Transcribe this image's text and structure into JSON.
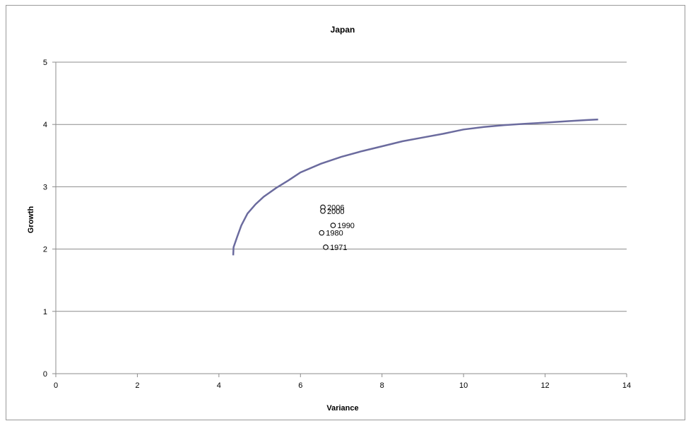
{
  "chart_data": {
    "type": "scatter",
    "title": "Japan",
    "xlabel": "Variance",
    "ylabel": "Growth",
    "xlim": [
      0,
      14
    ],
    "ylim": [
      0,
      5
    ],
    "xticks": [
      0,
      2,
      4,
      6,
      8,
      10,
      12,
      14
    ],
    "yticks": [
      0,
      1,
      2,
      3,
      4,
      5
    ],
    "grid": "horizontal",
    "legend": "none",
    "curve": {
      "color": "#6b6b9e",
      "points": [
        [
          4.35,
          1.9
        ],
        [
          4.36,
          2.03
        ],
        [
          4.45,
          2.2
        ],
        [
          4.55,
          2.38
        ],
        [
          4.7,
          2.57
        ],
        [
          4.9,
          2.72
        ],
        [
          5.1,
          2.84
        ],
        [
          5.4,
          2.98
        ],
        [
          5.7,
          3.1
        ],
        [
          6.0,
          3.23
        ],
        [
          6.5,
          3.37
        ],
        [
          7.0,
          3.48
        ],
        [
          7.5,
          3.57
        ],
        [
          8.0,
          3.65
        ],
        [
          8.5,
          3.73
        ],
        [
          9.0,
          3.79
        ],
        [
          9.5,
          3.85
        ],
        [
          10.0,
          3.92
        ],
        [
          10.5,
          3.96
        ],
        [
          11.0,
          3.99
        ],
        [
          11.5,
          4.01
        ],
        [
          12.0,
          4.03
        ],
        [
          12.5,
          4.05
        ],
        [
          13.0,
          4.07
        ],
        [
          13.3,
          4.08
        ]
      ]
    },
    "points": [
      {
        "label": "2006",
        "x": 6.55,
        "y": 2.67
      },
      {
        "label": "2000",
        "x": 6.55,
        "y": 2.61
      },
      {
        "label": "1990",
        "x": 6.8,
        "y": 2.38
      },
      {
        "label": "1980",
        "x": 6.52,
        "y": 2.26
      },
      {
        "label": "1971",
        "x": 6.62,
        "y": 2.03
      }
    ]
  }
}
